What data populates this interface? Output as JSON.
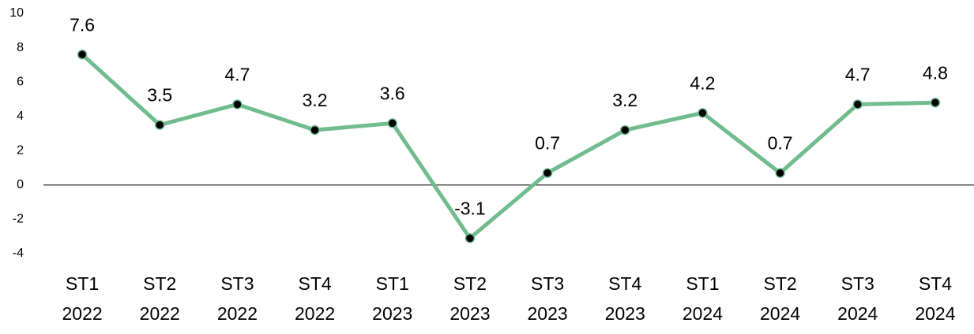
{
  "chart_data": {
    "type": "line",
    "categories": [
      [
        "ST1",
        "2022"
      ],
      [
        "ST2",
        "2022"
      ],
      [
        "ST3",
        "2022"
      ],
      [
        "ST4",
        "2022"
      ],
      [
        "ST1",
        "2023"
      ],
      [
        "ST2",
        "2023"
      ],
      [
        "ST3",
        "2023"
      ],
      [
        "ST4",
        "2023"
      ],
      [
        "ST1",
        "2024"
      ],
      [
        "ST2",
        "2024"
      ],
      [
        "ST3",
        "2024"
      ],
      [
        "ST4",
        "2024"
      ]
    ],
    "series": [
      {
        "color": "#70bc8f",
        "values": [
          7.6,
          3.5,
          4.7,
          3.2,
          3.6,
          -3.1,
          0.7,
          3.2,
          4.2,
          0.7,
          4.7,
          4.8
        ]
      }
    ],
    "ylim": [
      -4,
      10
    ],
    "yticks": [
      -4,
      -2,
      0,
      2,
      4,
      6,
      8,
      10
    ],
    "grid": false
  }
}
